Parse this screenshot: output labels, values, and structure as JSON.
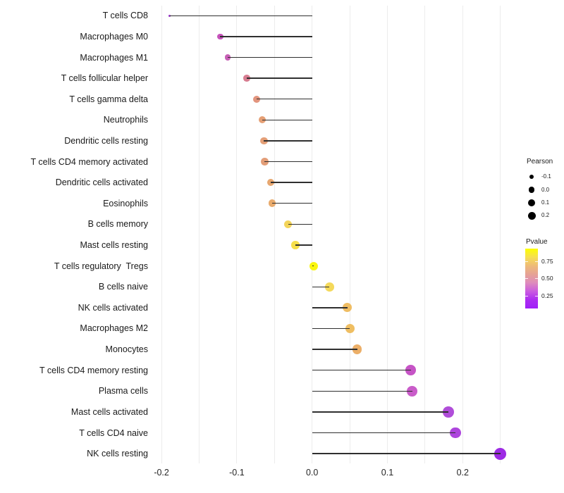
{
  "chart_data": {
    "type": "lollipop",
    "orientation": "horizontal",
    "title": "",
    "xlabel": "",
    "ylabel": "",
    "x_ticks": [
      "-0.2",
      "-0.1",
      "0.0",
      "0.1",
      "0.2"
    ],
    "x_tick_values": [
      -0.2,
      -0.1,
      0.0,
      0.1,
      0.2
    ],
    "xlim": [
      -0.211,
      0.272
    ],
    "grid_step": 0.05,
    "grid": "vertical-only",
    "stem_baseline": 0.0,
    "points": [
      {
        "label": "T cells CD8",
        "pearson": -0.189,
        "color": "#9534C4"
      },
      {
        "label": "Macrophages M0",
        "pearson": -0.122,
        "color": "#C653BB"
      },
      {
        "label": "Macrophages M1",
        "pearson": -0.112,
        "color": "#C75FB5"
      },
      {
        "label": "T cells follicular helper",
        "pearson": -0.087,
        "color": "#D77C90"
      },
      {
        "label": "T cells gamma delta",
        "pearson": -0.074,
        "color": "#E2947D"
      },
      {
        "label": "Neutrophils",
        "pearson": -0.066,
        "color": "#E59F75"
      },
      {
        "label": "Dendritic cells resting",
        "pearson": -0.064,
        "color": "#E49F77"
      },
      {
        "label": "T cells CD4 memory activated",
        "pearson": -0.063,
        "color": "#E39E78"
      },
      {
        "label": "Dendritic cells activated",
        "pearson": -0.055,
        "color": "#E7A770"
      },
      {
        "label": "Eosinophils",
        "pearson": -0.053,
        "color": "#E9AB6D"
      },
      {
        "label": "B cells memory",
        "pearson": -0.032,
        "color": "#F3D45A"
      },
      {
        "label": "Mast cells resting",
        "pearson": -0.022,
        "color": "#F6DF4B"
      },
      {
        "label": "T cells regulatory  Tregs",
        "pearson": 0.002,
        "color": "#FAF60F"
      },
      {
        "label": "B cells naive",
        "pearson": 0.023,
        "color": "#F4D95B"
      },
      {
        "label": "NK cells activated",
        "pearson": 0.047,
        "color": "#EFBD63"
      },
      {
        "label": "Macrophages M2",
        "pearson": 0.05,
        "color": "#EFBE62"
      },
      {
        "label": "Monocytes",
        "pearson": 0.06,
        "color": "#ECAF68"
      },
      {
        "label": "T cells CD4 memory resting",
        "pearson": 0.131,
        "color": "#C654C6"
      },
      {
        "label": "Plasma cells",
        "pearson": 0.133,
        "color": "#C95CC9"
      },
      {
        "label": "Mast cells activated",
        "pearson": 0.181,
        "color": "#B04DD9"
      },
      {
        "label": "T cells CD4 naive",
        "pearson": 0.19,
        "color": "#AD45DD"
      },
      {
        "label": "NK cells resting",
        "pearson": 0.25,
        "color": "#9D2BE4"
      }
    ],
    "legend_size": {
      "title": "Pearson",
      "entries": [
        {
          "label": "-0.1"
        },
        {
          "label": "0.0"
        },
        {
          "label": "0.1"
        },
        {
          "label": "0.2"
        }
      ],
      "dot_color": "#000000"
    },
    "legend_color": {
      "title": "Pvalue",
      "tick_labels": [
        "0.75",
        "0.50",
        "0.25"
      ],
      "gradient_top_to_bottom": [
        "#FCFF00",
        "#F6DF50",
        "#EEBB78",
        "#E6A295",
        "#DE8CBC",
        "#CA5CE0",
        "#AC2CF1",
        "#A01FF8"
      ]
    }
  }
}
